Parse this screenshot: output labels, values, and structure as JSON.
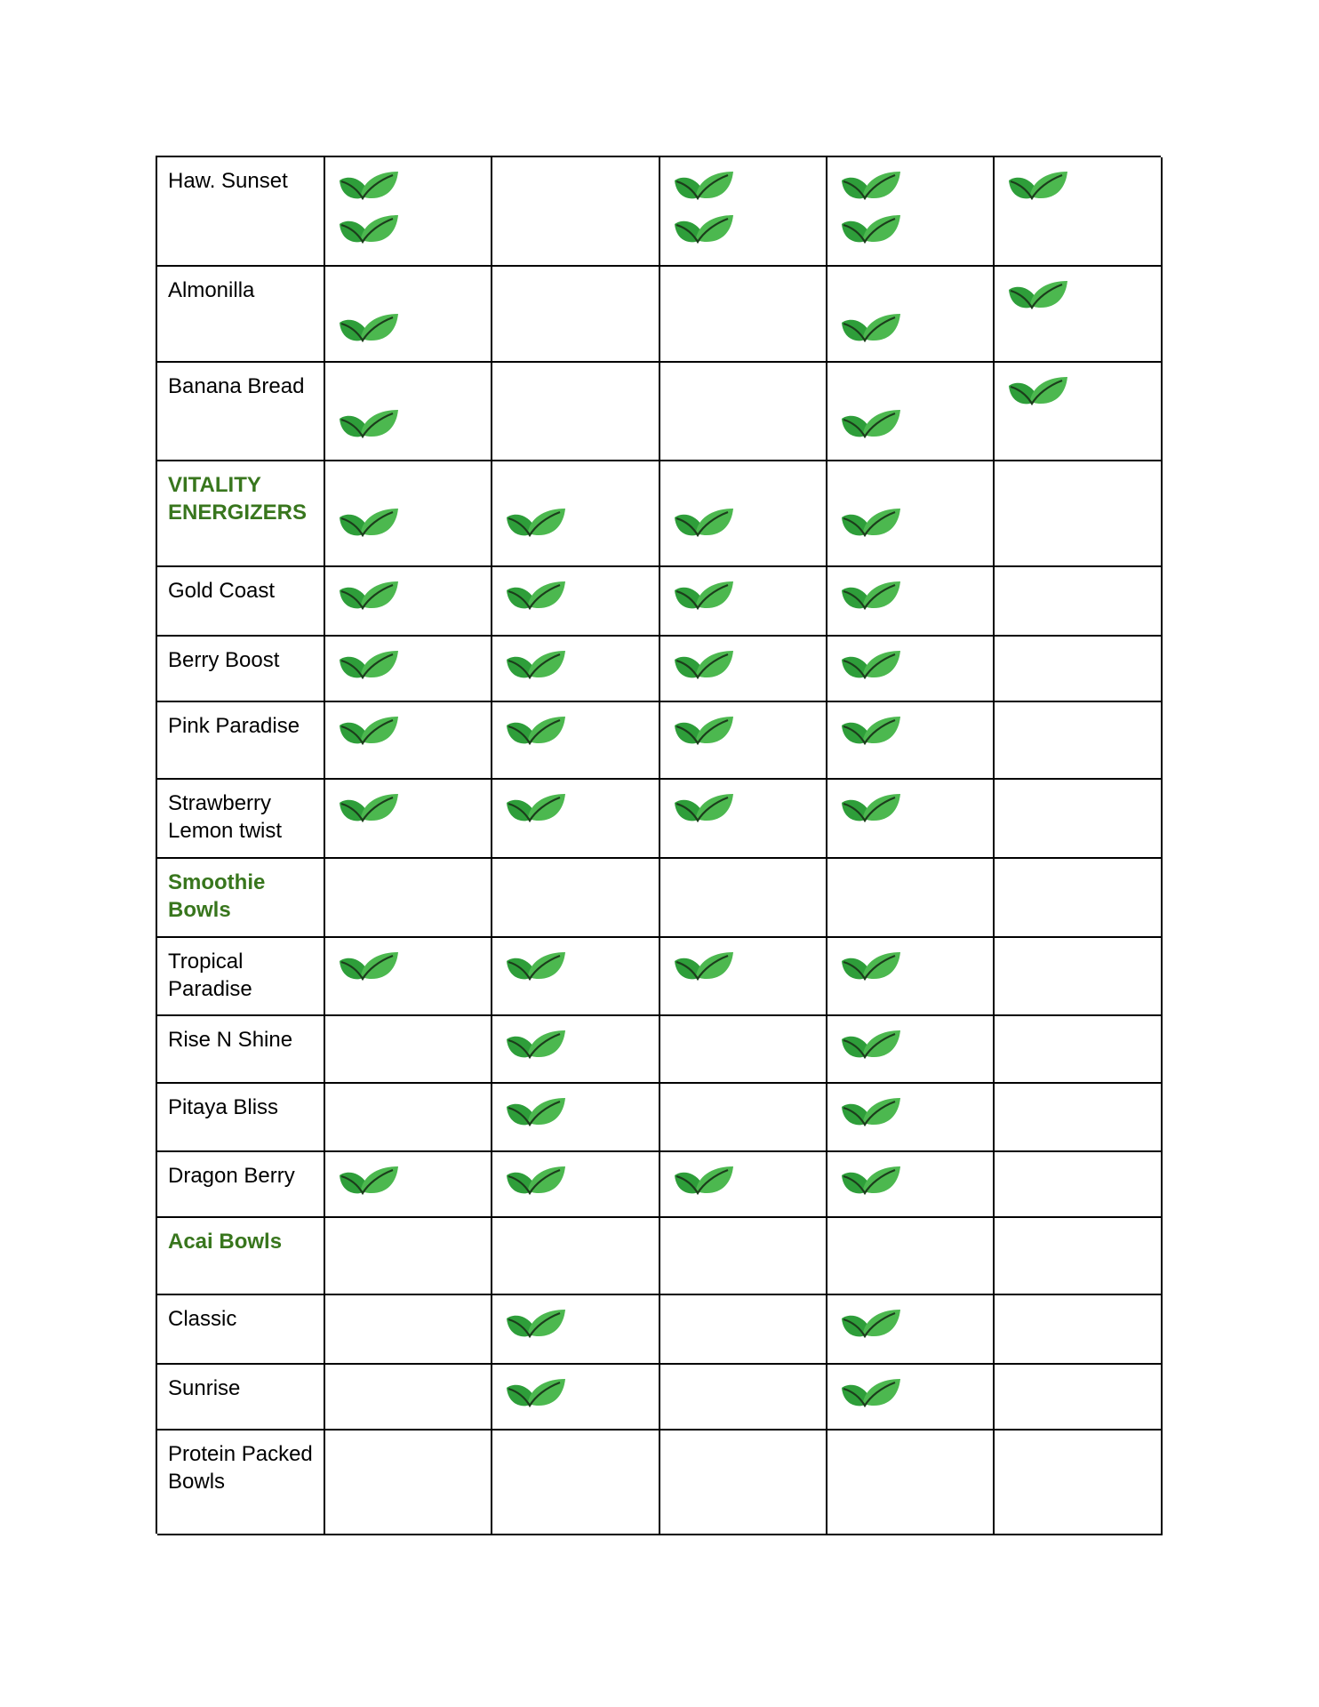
{
  "table": {
    "rows": [
      {
        "label": "Haw. Sunset",
        "section": false,
        "leaves": [
          2,
          0,
          2,
          2,
          1
        ]
      },
      {
        "label": "Almonilla",
        "section": false,
        "leaves": [
          1,
          0,
          0,
          1,
          1
        ]
      },
      {
        "label": "Banana Bread",
        "section": false,
        "leaves": [
          1,
          0,
          0,
          1,
          1
        ]
      },
      {
        "label": "VITALITY ENERGIZERS",
        "section": true,
        "leaves": [
          1,
          1,
          1,
          1,
          0
        ]
      },
      {
        "label": "Gold Coast",
        "section": false,
        "leaves": [
          1,
          1,
          1,
          1,
          0
        ]
      },
      {
        "label": "Berry Boost",
        "section": false,
        "leaves": [
          1,
          1,
          1,
          1,
          0
        ]
      },
      {
        "label": "Pink Paradise",
        "section": false,
        "leaves": [
          1,
          1,
          1,
          1,
          0
        ]
      },
      {
        "label": "Strawberry Lemon twist",
        "section": false,
        "leaves": [
          1,
          1,
          1,
          1,
          0
        ]
      },
      {
        "label": "Smoothie Bowls",
        "section": true,
        "leaves": [
          0,
          0,
          0,
          0,
          0
        ]
      },
      {
        "label": "Tropical Paradise",
        "section": false,
        "leaves": [
          1,
          1,
          1,
          1,
          0
        ]
      },
      {
        "label": "Rise N Shine",
        "section": false,
        "leaves": [
          0,
          1,
          0,
          1,
          0
        ]
      },
      {
        "label": "Pitaya Bliss",
        "section": false,
        "leaves": [
          0,
          1,
          0,
          1,
          0
        ]
      },
      {
        "label": "Dragon Berry",
        "section": false,
        "leaves": [
          1,
          1,
          1,
          1,
          0
        ]
      },
      {
        "label": "Acai Bowls",
        "section": true,
        "leaves": [
          0,
          0,
          0,
          0,
          0
        ]
      },
      {
        "label": "Classic",
        "section": false,
        "leaves": [
          0,
          1,
          0,
          1,
          0
        ]
      },
      {
        "label": "Sunrise",
        "section": false,
        "leaves": [
          0,
          1,
          0,
          1,
          0
        ]
      },
      {
        "label": "Protein Packed Bowls",
        "section": false,
        "leaves": [
          0,
          0,
          0,
          0,
          0
        ]
      }
    ]
  }
}
